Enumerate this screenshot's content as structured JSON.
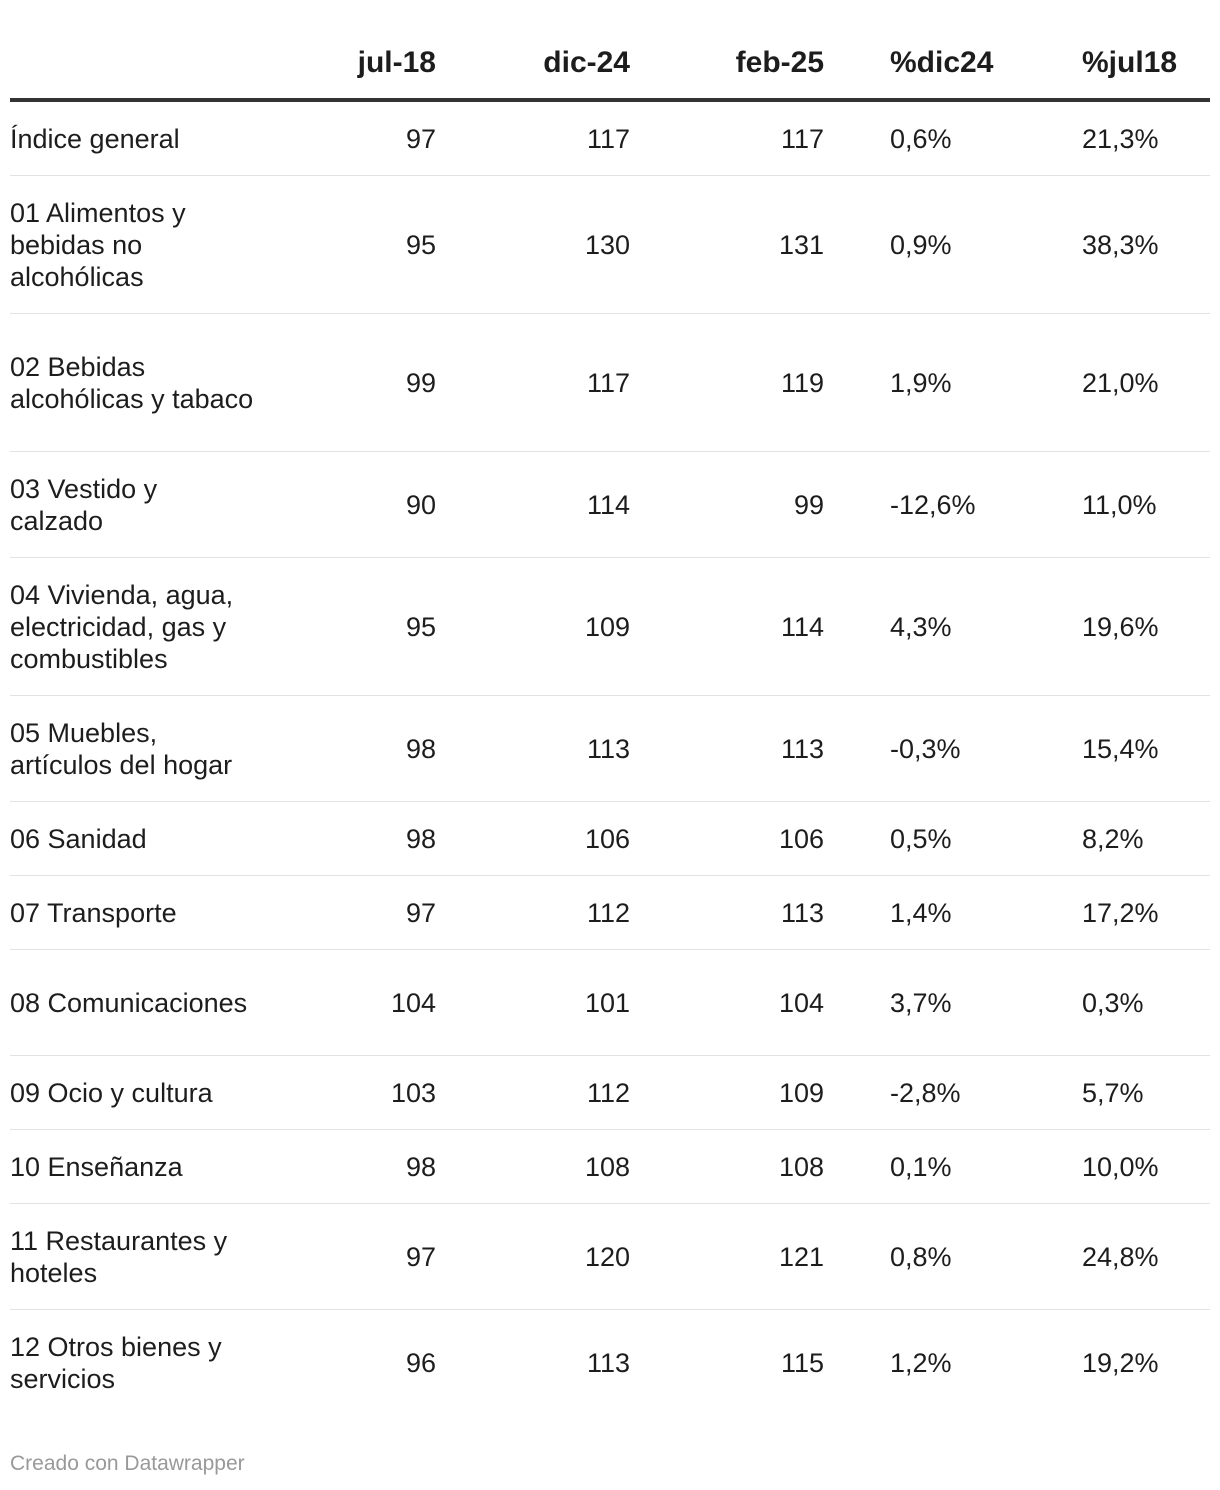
{
  "chart_data": {
    "type": "table",
    "columns": [
      "",
      "jul-18",
      "dic-24",
      "feb-25",
      "%dic24",
      "%jul18"
    ],
    "rows": [
      {
        "label": "Índice general",
        "jul18": "97",
        "dic24": "117",
        "feb25": "117",
        "pdic24": "0,6%",
        "pjul18": "21,3%"
      },
      {
        "label": "01 Alimentos y bebidas no alcohólicas",
        "jul18": "95",
        "dic24": "130",
        "feb25": "131",
        "pdic24": "0,9%",
        "pjul18": "38,3%"
      },
      {
        "label": "02 Bebidas alcohólicas y tabaco",
        "jul18": "99",
        "dic24": "117",
        "feb25": "119",
        "pdic24": "1,9%",
        "pjul18": "21,0%"
      },
      {
        "label": "03 Vestido y calzado",
        "jul18": "90",
        "dic24": "114",
        "feb25": "99",
        "pdic24": "-12,6%",
        "pjul18": "11,0%"
      },
      {
        "label": "04 Vivienda, agua, electricidad, gas y combustibles",
        "jul18": "95",
        "dic24": "109",
        "feb25": "114",
        "pdic24": "4,3%",
        "pjul18": "19,6%"
      },
      {
        "label": "05 Muebles, artículos del hogar",
        "jul18": "98",
        "dic24": "113",
        "feb25": "113",
        "pdic24": "-0,3%",
        "pjul18": "15,4%"
      },
      {
        "label": "06 Sanidad",
        "jul18": "98",
        "dic24": "106",
        "feb25": "106",
        "pdic24": "0,5%",
        "pjul18": "8,2%"
      },
      {
        "label": "07 Transporte",
        "jul18": "97",
        "dic24": "112",
        "feb25": "113",
        "pdic24": "1,4%",
        "pjul18": "17,2%"
      },
      {
        "label": "08 Comunicaciones",
        "jul18": "104",
        "dic24": "101",
        "feb25": "104",
        "pdic24": "3,7%",
        "pjul18": "0,3%"
      },
      {
        "label": "09 Ocio y cultura",
        "jul18": "103",
        "dic24": "112",
        "feb25": "109",
        "pdic24": "-2,8%",
        "pjul18": "5,7%"
      },
      {
        "label": "10 Enseñanza",
        "jul18": "98",
        "dic24": "108",
        "feb25": "108",
        "pdic24": "0,1%",
        "pjul18": "10,0%"
      },
      {
        "label": "11 Restaurantes y hoteles",
        "jul18": "97",
        "dic24": "120",
        "feb25": "121",
        "pdic24": "0,8%",
        "pjul18": "24,8%"
      },
      {
        "label": "12 Otros bienes y servicios",
        "jul18": "96",
        "dic24": "113",
        "feb25": "115",
        "pdic24": "1,2%",
        "pjul18": "19,2%"
      }
    ]
  },
  "footer": {
    "credit": "Creado con Datawrapper"
  }
}
